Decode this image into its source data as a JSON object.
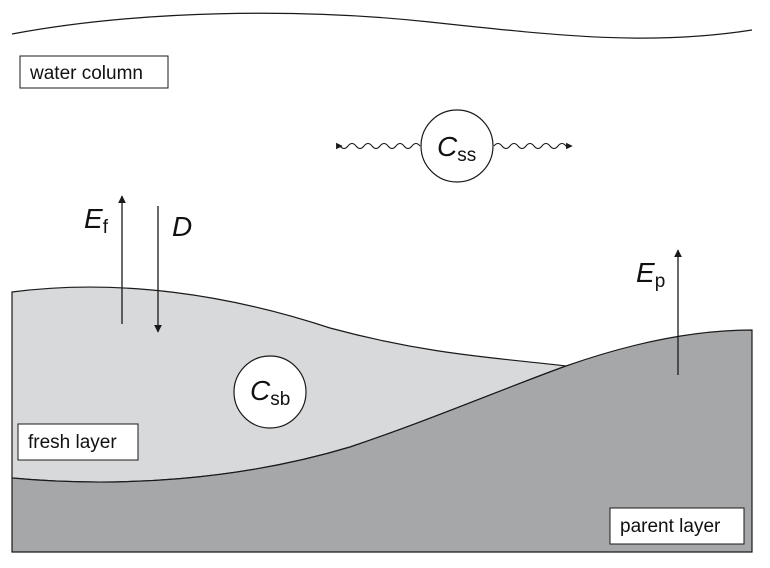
{
  "labels": {
    "water_column": "water column",
    "fresh_layer": "fresh layer",
    "parent_layer": "parent layer"
  },
  "symbols": {
    "css": {
      "main": "C",
      "sub": "ss"
    },
    "csb": {
      "main": "C",
      "sub": "sb"
    },
    "ef": {
      "main": "E",
      "sub": "f"
    },
    "d": {
      "main": "D"
    },
    "ep": {
      "main": "E",
      "sub": "p"
    }
  },
  "colors": {
    "fresh_layer_fill": "#d8d9da",
    "parent_layer_fill": "#a6a7a9",
    "stroke": "#1a1a1a",
    "background": "#ffffff"
  }
}
